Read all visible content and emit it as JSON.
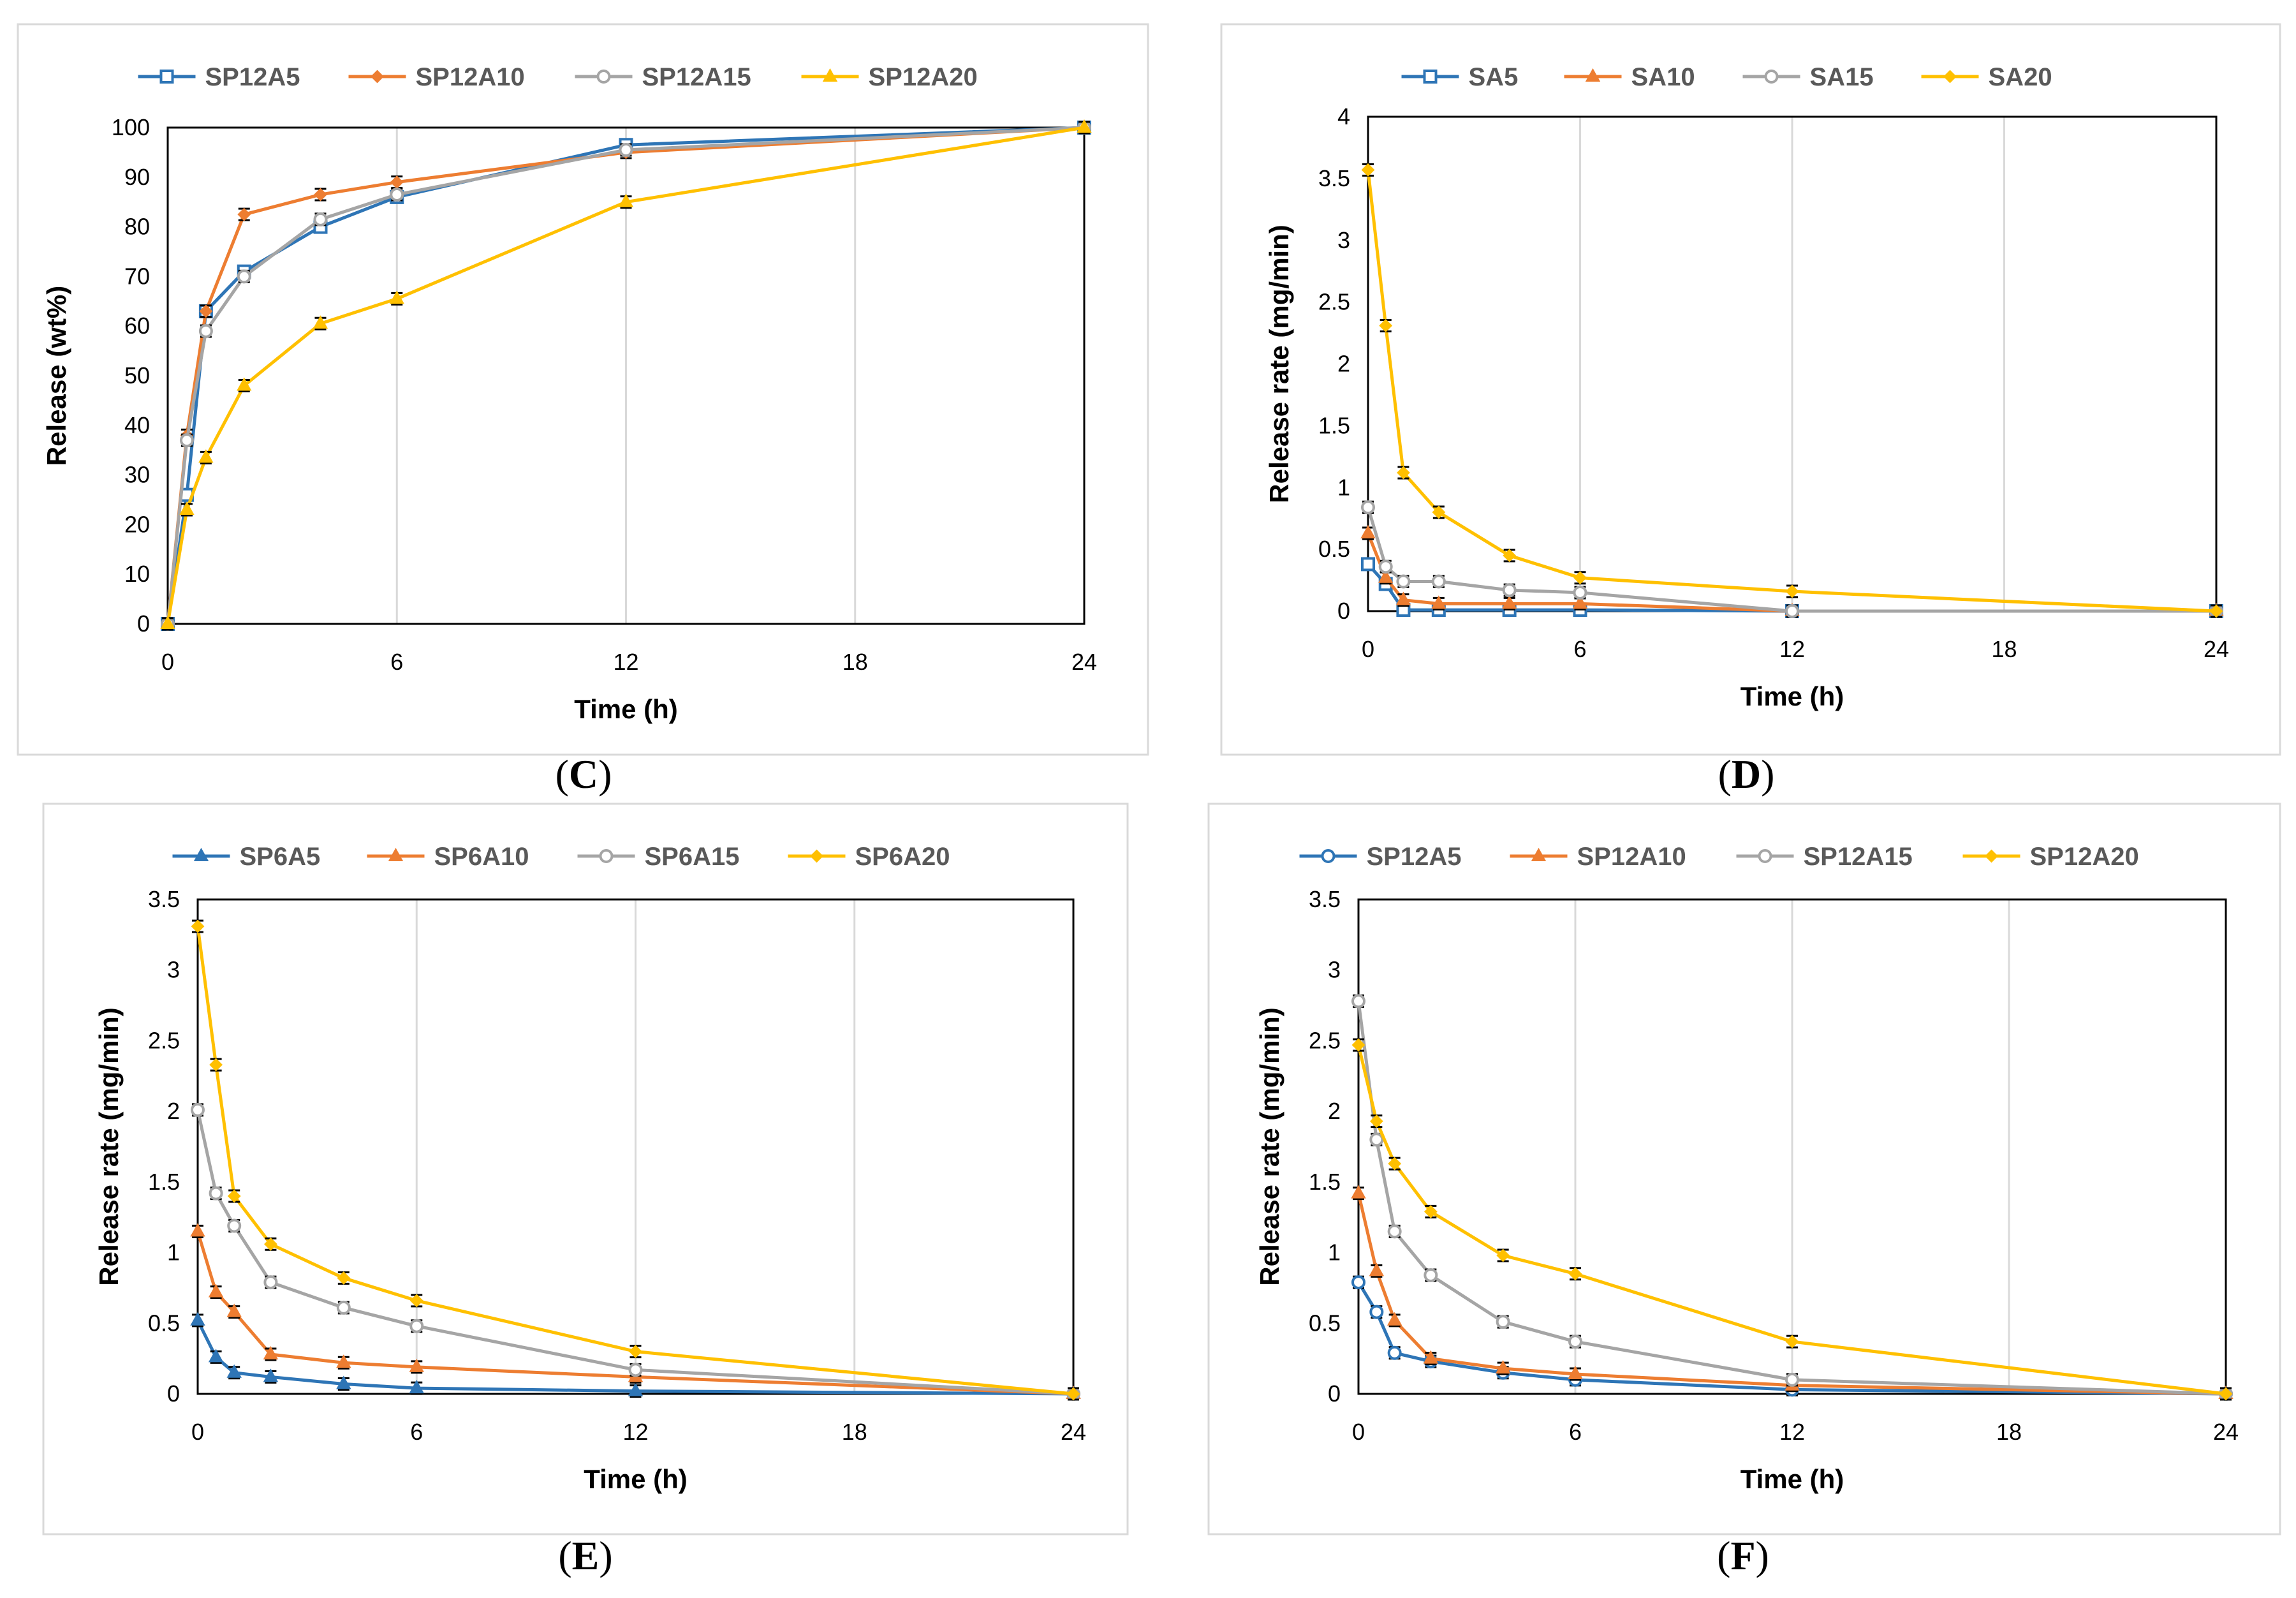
{
  "figure": {
    "colors": {
      "s1": "#2E75B6",
      "s2": "#ED7D31",
      "s3": "#A5A5A5",
      "s4": "#FFC000",
      "grid": "#D9D9D9",
      "frame": "#D9D9D9",
      "axis": "#000000"
    }
  },
  "chart_data": [
    {
      "type": "line",
      "panel_label": "(C)",
      "panel_letter": "C",
      "xlabel": "Time (h)",
      "ylabel": "Release (wt%)",
      "xlim": [
        0,
        24
      ],
      "ylim": [
        0,
        100
      ],
      "xticks": [
        0,
        6,
        12,
        18,
        24
      ],
      "yticks": [
        0,
        10,
        20,
        30,
        40,
        50,
        60,
        70,
        80,
        90,
        100
      ],
      "grid": true,
      "legend_position": "top",
      "x": [
        0,
        0.5,
        1,
        2,
        4,
        6,
        12,
        24
      ],
      "series": [
        {
          "name": "SP12A5",
          "marker": "square",
          "values": [
            0,
            26,
            63,
            71,
            80,
            86,
            96.5,
            100
          ]
        },
        {
          "name": "SP12A10",
          "marker": "diamond",
          "values": [
            0,
            38,
            63,
            82.5,
            86.5,
            89,
            95,
            100
          ]
        },
        {
          "name": "SP12A15",
          "marker": "circle",
          "values": [
            0,
            37,
            59,
            70,
            81.5,
            86.5,
            95.5,
            100
          ]
        },
        {
          "name": "SP12A20",
          "marker": "triangle",
          "values": [
            0,
            23,
            33.5,
            48,
            60.5,
            65.5,
            85,
            100
          ]
        }
      ]
    },
    {
      "type": "line",
      "panel_label": "(D)",
      "panel_letter": "D",
      "xlabel": "Time (h)",
      "ylabel": "Release rate (mg/min)",
      "xlim": [
        0,
        24
      ],
      "ylim": [
        0,
        4
      ],
      "xticks": [
        0,
        6,
        12,
        18,
        24
      ],
      "yticks": [
        0,
        0.5,
        1,
        1.5,
        2,
        2.5,
        3,
        3.5,
        4
      ],
      "grid": true,
      "legend_position": "top",
      "x": [
        0,
        0.5,
        1,
        2,
        4,
        6,
        12,
        24
      ],
      "series": [
        {
          "name": "SA5",
          "marker": "square",
          "values": [
            0.38,
            0.22,
            0.01,
            0.01,
            0.01,
            0.01,
            0.0,
            0.0
          ]
        },
        {
          "name": "SA10",
          "marker": "triangle",
          "values": [
            0.63,
            0.27,
            0.09,
            0.06,
            0.06,
            0.06,
            0.0,
            0.0
          ]
        },
        {
          "name": "SA15",
          "marker": "circle",
          "values": [
            0.84,
            0.36,
            0.24,
            0.24,
            0.17,
            0.15,
            0.0,
            0.0
          ]
        },
        {
          "name": "SA20",
          "marker": "diamond",
          "values": [
            3.57,
            2.31,
            1.12,
            0.8,
            0.45,
            0.27,
            0.16,
            0.0
          ]
        }
      ]
    },
    {
      "type": "line",
      "panel_label": "(E)",
      "panel_letter": "E",
      "xlabel": "Time (h)",
      "ylabel": "Release rate (mg/min)",
      "xlim": [
        0,
        24
      ],
      "ylim": [
        0,
        3.5
      ],
      "xticks": [
        0,
        6,
        12,
        18,
        24
      ],
      "yticks": [
        0,
        0.5,
        1,
        1.5,
        2,
        2.5,
        3,
        3.5
      ],
      "grid": true,
      "legend_position": "top",
      "x": [
        0,
        0.5,
        1,
        2,
        4,
        6,
        12,
        24
      ],
      "series": [
        {
          "name": "SP6A5",
          "marker": "triangle",
          "values": [
            0.52,
            0.26,
            0.15,
            0.12,
            0.07,
            0.04,
            0.02,
            0.0
          ]
        },
        {
          "name": "SP6A10",
          "marker": "triangle",
          "values": [
            1.15,
            0.72,
            0.58,
            0.28,
            0.22,
            0.19,
            0.12,
            0.0
          ]
        },
        {
          "name": "SP6A15",
          "marker": "circle",
          "values": [
            2.01,
            1.42,
            1.19,
            0.79,
            0.61,
            0.48,
            0.17,
            0.0
          ]
        },
        {
          "name": "SP6A20",
          "marker": "diamond",
          "values": [
            3.31,
            2.33,
            1.4,
            1.06,
            0.82,
            0.66,
            0.3,
            0.0
          ]
        }
      ]
    },
    {
      "type": "line",
      "panel_label": "(F)",
      "panel_letter": "F",
      "xlabel": "Time (h)",
      "ylabel": "Release rate (mg/min)",
      "xlim": [
        0,
        24
      ],
      "ylim": [
        0,
        3.5
      ],
      "xticks": [
        0,
        6,
        12,
        18,
        24
      ],
      "yticks": [
        0,
        0.5,
        1,
        1.5,
        2,
        2.5,
        3,
        3.5
      ],
      "grid": true,
      "legend_position": "top",
      "x": [
        0,
        0.5,
        1,
        2,
        4,
        6,
        12,
        24
      ],
      "series": [
        {
          "name": "SP12A5",
          "marker": "circle",
          "values": [
            0.79,
            0.58,
            0.29,
            0.23,
            0.15,
            0.1,
            0.03,
            0.0
          ]
        },
        {
          "name": "SP12A10",
          "marker": "triangle",
          "values": [
            1.42,
            0.87,
            0.52,
            0.25,
            0.18,
            0.14,
            0.06,
            0.0
          ]
        },
        {
          "name": "SP12A15",
          "marker": "circle",
          "values": [
            2.78,
            1.8,
            1.15,
            0.84,
            0.51,
            0.37,
            0.1,
            0.0
          ]
        },
        {
          "name": "SP12A20",
          "marker": "diamond",
          "values": [
            2.47,
            1.93,
            1.63,
            1.29,
            0.98,
            0.85,
            0.37,
            0.0
          ]
        }
      ]
    }
  ]
}
